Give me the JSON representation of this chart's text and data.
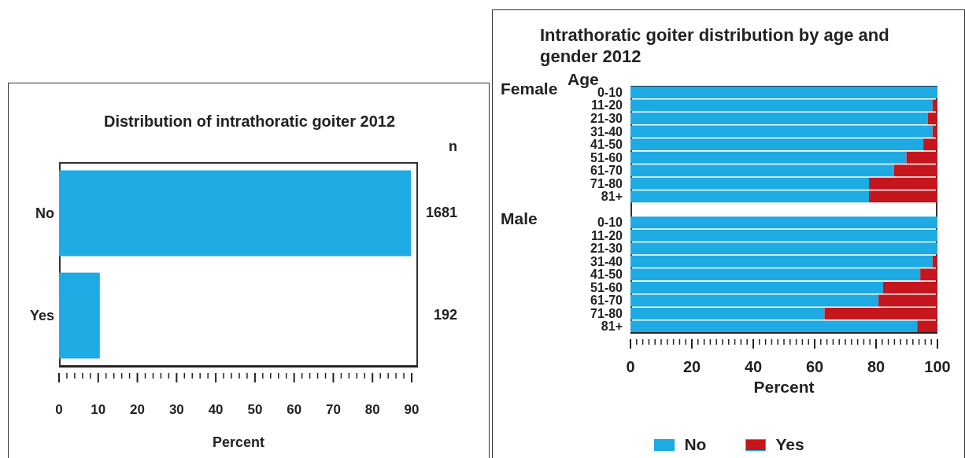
{
  "chart_data": [
    {
      "type": "bar",
      "orientation": "horizontal",
      "title": "Distribution of intrathoratic goiter 2012",
      "xlabel": "Percent",
      "categories": [
        "No",
        "Yes"
      ],
      "values": [
        89.8,
        10.4
      ],
      "color": "#1eaae2",
      "xlim": [
        0,
        91.6
      ],
      "xticks": [
        0,
        {
          "value": 2,
          "label": null
        },
        {
          "value": 4,
          "label": null
        },
        {
          "value": 6,
          "label": null
        },
        {
          "value": 8,
          "label": null
        },
        10,
        {
          "value": 12,
          "label": null
        },
        {
          "value": 14,
          "label": null
        },
        {
          "value": 16,
          "label": null
        },
        {
          "value": 18,
          "label": null
        },
        20,
        {
          "value": 22,
          "label": null
        },
        {
          "value": 24,
          "label": null
        },
        {
          "value": 26,
          "label": null
        },
        {
          "value": 28,
          "label": null
        },
        30,
        {
          "value": 32,
          "label": null
        },
        {
          "value": 34,
          "label": null
        },
        {
          "value": 36,
          "label": null
        },
        {
          "value": 38,
          "label": null
        },
        40,
        {
          "value": 42,
          "label": null
        },
        {
          "value": 44,
          "label": null
        },
        {
          "value": 46,
          "label": null
        },
        {
          "value": 48,
          "label": null
        },
        50,
        {
          "value": 52,
          "label": null
        },
        {
          "value": 54,
          "label": null
        },
        {
          "value": 56,
          "label": null
        },
        {
          "value": 58,
          "label": null
        },
        60,
        {
          "value": 62,
          "label": null
        },
        {
          "value": 64,
          "label": null
        },
        {
          "value": 66,
          "label": null
        },
        {
          "value": 68,
          "label": null
        },
        70,
        {
          "value": 72,
          "label": null
        },
        {
          "value": 74,
          "label": null
        },
        {
          "value": 76,
          "label": null
        },
        {
          "value": 78,
          "label": null
        },
        80,
        {
          "value": 82,
          "label": null
        },
        {
          "value": 84,
          "label": null
        },
        {
          "value": 86,
          "label": null
        },
        {
          "value": 88,
          "label": null
        },
        90
      ],
      "annotations": [
        "n",
        "1681",
        "192"
      ]
    },
    {
      "type": "bar",
      "orientation": "horizontal",
      "stacked": true,
      "title": "Intrathoratic goiter distribution by age and gender 2012",
      "xlabel": "Percent",
      "legend": "bottom",
      "categories": [
        "0-10",
        "11-20",
        "21-30",
        "31-40",
        "41-50",
        "51-60",
        "61-70",
        "71-80",
        "81+",
        null,
        "0-10",
        "11-20",
        "21-30",
        "31-40",
        "41-50",
        "51-60",
        "61-70",
        "71-80",
        "81+"
      ],
      "series": [
        {
          "name": "No",
          "color": "#1eaae2",
          "values": [
            100,
            98.4,
            96.9,
            98.4,
            95.4,
            89.9,
            85.8,
            77.7,
            77.7,
            null,
            100,
            100,
            100,
            98.4,
            94.4,
            82.3,
            80.8,
            63.2,
            93.4
          ]
        },
        {
          "name": "Yes",
          "color": "#c4161c",
          "values": [
            0,
            1.6,
            3.1,
            1.6,
            4.6,
            10.1,
            14.2,
            22.3,
            22.3,
            null,
            0,
            0,
            0,
            1.6,
            5.6,
            17.7,
            19.2,
            36.8,
            6.6
          ]
        }
      ],
      "xlim": [
        0,
        100
      ],
      "xticks": [
        0,
        {
          "value": 2,
          "label": null
        },
        {
          "value": 4,
          "label": null
        },
        {
          "value": 6,
          "label": null
        },
        {
          "value": 8,
          "label": null
        },
        {
          "value": 10,
          "label": null
        },
        {
          "value": 12,
          "label": null
        },
        {
          "value": 14,
          "label": null
        },
        {
          "value": 16,
          "label": null
        },
        {
          "value": 18,
          "label": null
        },
        20,
        {
          "value": 22,
          "label": null
        },
        {
          "value": 24,
          "label": null
        },
        {
          "value": 26,
          "label": null
        },
        {
          "value": 28,
          "label": null
        },
        {
          "value": 30,
          "label": null
        },
        {
          "value": 32,
          "label": null
        },
        {
          "value": 34,
          "label": null
        },
        {
          "value": 36,
          "label": null
        },
        {
          "value": 38,
          "label": null
        },
        40,
        {
          "value": 42,
          "label": null
        },
        {
          "value": 44,
          "label": null
        },
        {
          "value": 46,
          "label": null
        },
        {
          "value": 48,
          "label": null
        },
        {
          "value": 50,
          "label": null
        },
        {
          "value": 52,
          "label": null
        },
        {
          "value": 54,
          "label": null
        },
        {
          "value": 56,
          "label": null
        },
        {
          "value": 58,
          "label": null
        },
        60,
        {
          "value": 62,
          "label": null
        },
        {
          "value": 64,
          "label": null
        },
        {
          "value": 66,
          "label": null
        },
        {
          "value": 68,
          "label": null
        },
        {
          "value": 70,
          "label": null
        },
        {
          "value": 72,
          "label": null
        },
        {
          "value": 74,
          "label": null
        },
        {
          "value": 76,
          "label": null
        },
        {
          "value": 78,
          "label": null
        },
        80,
        {
          "value": 82,
          "label": null
        },
        {
          "value": 84,
          "label": null
        },
        {
          "value": 86,
          "label": null
        },
        {
          "value": 88,
          "label": null
        },
        {
          "value": 90,
          "label": null
        },
        {
          "value": 92,
          "label": null
        },
        {
          "value": 94,
          "label": null
        },
        {
          "value": 96,
          "label": null
        },
        {
          "value": 98,
          "label": null
        },
        100
      ],
      "annotations": [
        "Age",
        "Female",
        "Male"
      ]
    }
  ]
}
